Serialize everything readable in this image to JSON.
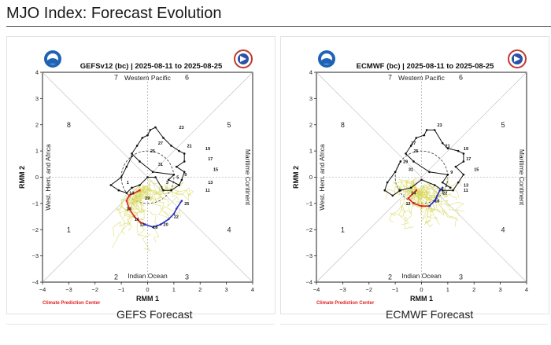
{
  "page": {
    "title": "MJO Index: Forecast Evolution"
  },
  "chart_data": [
    {
      "type": "scatter",
      "title": "GEFSv12 (bc) | 2025-08-11 to 2025-08-25",
      "caption": "GEFS Forecast",
      "xlabel": "RMM 1",
      "ylabel": "RMM 2",
      "xlim": [
        -4,
        4
      ],
      "ylim": [
        -4,
        4
      ],
      "xticks": [
        "−4",
        "−3",
        "−2",
        "−1",
        "0",
        "1",
        "2",
        "3",
        "4"
      ],
      "yticks": [
        "−4",
        "−3",
        "−2",
        "−1",
        "0",
        "1",
        "2",
        "3",
        "4"
      ],
      "region_labels": {
        "top": "Western Pacific",
        "bottom": "Indian Ocean",
        "left": "West. Hem. and Africa",
        "right": "Maritime Continent"
      },
      "phase_numbers": [
        "1",
        "2",
        "3",
        "4",
        "5",
        "6",
        "7",
        "8"
      ],
      "credit": "Climate Prediction Center",
      "colors": {
        "observed": "#111111",
        "ensemble_mean_week1": "#e02020",
        "ensemble_mean_week2": "#2030c0",
        "members": "#d8d860"
      },
      "series": [
        {
          "points": [
            [
              1.2,
              -0.3
            ],
            [
              0.8,
              -0.1
            ],
            [
              1.0,
              0.1
            ],
            [
              0.2,
              0.2
            ],
            [
              -0.3,
              0.6
            ],
            [
              -0.6,
              0.9
            ],
            [
              -0.4,
              1.2
            ],
            [
              -0.2,
              1.5
            ],
            [
              0.0,
              1.6
            ],
            [
              0.1,
              1.8
            ],
            [
              0.3,
              1.9
            ],
            [
              0.6,
              1.5
            ],
            [
              0.9,
              1.2
            ],
            [
              1.2,
              1.0
            ],
            [
              1.4,
              0.9
            ],
            [
              1.4,
              0.6
            ],
            [
              1.1,
              0.4
            ],
            [
              1.4,
              0.2
            ],
            [
              1.3,
              -0.1
            ],
            [
              1.2,
              -0.3
            ],
            [
              0.9,
              -0.5
            ],
            [
              0.6,
              -0.5
            ],
            [
              0.3,
              0.0
            ],
            [
              0.0,
              0.0
            ],
            [
              -0.3,
              -0.3
            ],
            [
              -0.6,
              -0.4
            ],
            [
              -0.8,
              -0.6
            ],
            [
              -1.1,
              -0.5
            ],
            [
              -1.4,
              -0.3
            ],
            [
              -1.0,
              0.0
            ],
            [
              -0.8,
              0.4
            ],
            [
              -0.6,
              0.8
            ]
          ],
          "labels": [
            {
              "t": "23",
              "p": [
                1.2,
                1.9
              ]
            },
            {
              "t": "21",
              "p": [
                1.5,
                1.2
              ]
            },
            {
              "t": "19",
              "p": [
                2.2,
                1.1
              ]
            },
            {
              "t": "17",
              "p": [
                2.3,
                0.7
              ]
            },
            {
              "t": "15",
              "p": [
                2.5,
                0.3
              ]
            },
            {
              "t": "13",
              "p": [
                2.3,
                -0.2
              ]
            },
            {
              "t": "11",
              "p": [
                2.2,
                -0.5
              ]
            },
            {
              "t": "27",
              "p": [
                0.4,
                1.3
              ]
            },
            {
              "t": "25",
              "p": [
                0.1,
                1.0
              ]
            },
            {
              "t": "31",
              "p": [
                0.4,
                0.5
              ]
            },
            {
              "t": "9",
              "p": [
                1.4,
                0.1
              ]
            },
            {
              "t": "5",
              "p": [
                1.1,
                0.0
              ]
            },
            {
              "t": "3",
              "p": [
                0.7,
                -0.2
              ]
            },
            {
              "t": "1",
              "p": [
                0.5,
                -0.4
              ]
            },
            {
              "t": "29",
              "p": [
                -0.1,
                -0.8
              ]
            },
            {
              "t": "1",
              "p": [
                -0.8,
                -0.2
              ]
            }
          ]
        },
        {
          "points": [
            [
              -0.3,
              -0.5
            ],
            [
              -0.7,
              -0.7
            ],
            [
              -0.8,
              -0.9
            ],
            [
              -0.7,
              -1.2
            ],
            [
              -0.5,
              -1.5
            ],
            [
              -0.3,
              -1.7
            ],
            [
              -0.1,
              -1.8
            ]
          ],
          "labels": [
            {
              "t": "14",
              "p": [
                -0.7,
                -0.6
              ]
            },
            {
              "t": "13",
              "p": [
                -0.8,
                -1.2
              ]
            },
            {
              "t": "16",
              "p": [
                -0.5,
                -1.6
              ]
            },
            {
              "t": "12",
              "p": [
                -0.3,
                -1.8
              ]
            }
          ]
        },
        {
          "points": [
            [
              -0.1,
              -1.8
            ],
            [
              0.2,
              -1.9
            ],
            [
              0.5,
              -1.8
            ],
            [
              0.8,
              -1.6
            ],
            [
              1.0,
              -1.4
            ],
            [
              1.1,
              -1.2
            ],
            [
              1.3,
              -0.9
            ]
          ],
          "labels": [
            {
              "t": "18",
              "p": [
                0.2,
                -1.9
              ]
            },
            {
              "t": "20",
              "p": [
                0.6,
                -1.8
              ]
            },
            {
              "t": "22",
              "p": [
                1.0,
                -1.5
              ]
            },
            {
              "t": "25",
              "p": [
                1.4,
                -1.0
              ]
            }
          ]
        }
      ],
      "spread": {
        "center": [
          0.3,
          -1.6
        ],
        "radius_x": 1.7,
        "radius_y": 1.3,
        "members": 22
      }
    },
    {
      "type": "scatter",
      "title": "ECMWF (bc) | 2025-08-11 to 2025-08-25",
      "caption": "ECMWF Forecast",
      "xlabel": "RMM 1",
      "ylabel": "RMM 2",
      "xlim": [
        -4,
        4
      ],
      "ylim": [
        -4,
        4
      ],
      "xticks": [
        "−4",
        "−3",
        "−2",
        "−1",
        "0",
        "1",
        "2",
        "3",
        "4"
      ],
      "yticks": [
        "−4",
        "−3",
        "−2",
        "−1",
        "0",
        "1",
        "2",
        "3",
        "4"
      ],
      "region_labels": {
        "top": "Western Pacific",
        "bottom": "Indian Ocean",
        "left": "West. Hem. and Africa",
        "right": "Maritime Continent"
      },
      "phase_numbers": [
        "1",
        "2",
        "3",
        "4",
        "5",
        "6",
        "7",
        "8"
      ],
      "credit": "Climate Prediction Center",
      "colors": {
        "observed": "#111111",
        "ensemble_mean_week1": "#e02020",
        "ensemble_mean_week2": "#2030c0",
        "members": "#d8d860"
      },
      "series": [
        {
          "points": [
            [
              1.1,
              -0.4
            ],
            [
              0.8,
              -0.2
            ],
            [
              1.0,
              0.1
            ],
            [
              0.3,
              0.2
            ],
            [
              -0.3,
              0.6
            ],
            [
              -0.6,
              0.9
            ],
            [
              -0.4,
              1.2
            ],
            [
              -0.2,
              1.5
            ],
            [
              0.1,
              1.6
            ],
            [
              0.2,
              1.8
            ],
            [
              0.5,
              1.8
            ],
            [
              0.8,
              1.3
            ],
            [
              1.0,
              1.1
            ],
            [
              1.4,
              1.0
            ],
            [
              1.6,
              0.9
            ],
            [
              1.6,
              0.6
            ],
            [
              1.3,
              0.4
            ],
            [
              1.6,
              0.1
            ],
            [
              1.4,
              -0.2
            ],
            [
              1.2,
              -0.5
            ],
            [
              0.8,
              -0.5
            ],
            [
              0.5,
              -0.3
            ],
            [
              0.0,
              -0.1
            ],
            [
              -0.4,
              -0.4
            ],
            [
              -0.8,
              -0.5
            ],
            [
              -1.1,
              -0.7
            ],
            [
              -1.4,
              -0.5
            ],
            [
              -1.3,
              -0.2
            ],
            [
              -1.0,
              0.2
            ],
            [
              -0.8,
              0.6
            ]
          ],
          "labels": [
            {
              "t": "23",
              "p": [
                0.6,
                2.0
              ]
            },
            {
              "t": "21",
              "p": [
                0.9,
                1.2
              ]
            },
            {
              "t": "19",
              "p": [
                1.6,
                1.1
              ]
            },
            {
              "t": "17",
              "p": [
                1.7,
                0.7
              ]
            },
            {
              "t": "15",
              "p": [
                2.0,
                0.3
              ]
            },
            {
              "t": "13",
              "p": [
                1.6,
                -0.3
              ]
            },
            {
              "t": "11",
              "p": [
                1.6,
                -0.5
              ]
            },
            {
              "t": "27",
              "p": [
                -0.4,
                1.3
              ]
            },
            {
              "t": "25",
              "p": [
                -0.3,
                1.0
              ]
            },
            {
              "t": "29",
              "p": [
                -0.7,
                0.6
              ]
            },
            {
              "t": "31",
              "p": [
                -0.5,
                0.3
              ]
            },
            {
              "t": "9",
              "p": [
                1.1,
                0.2
              ]
            },
            {
              "t": "1",
              "p": [
                0.9,
                -0.3
              ]
            },
            {
              "t": "1",
              "p": [
                -0.9,
                -0.5
              ]
            }
          ]
        },
        {
          "points": [
            [
              -0.2,
              -0.5
            ],
            [
              -0.5,
              -0.8
            ],
            [
              -0.3,
              -1.0
            ],
            [
              0.0,
              -1.1
            ],
            [
              0.3,
              -1.1
            ]
          ],
          "labels": [
            {
              "t": "12",
              "p": [
                -0.6,
                -1.0
              ]
            },
            {
              "t": "14",
              "p": [
                -0.4,
                -0.6
              ]
            }
          ]
        },
        {
          "points": [
            [
              0.3,
              -1.1
            ],
            [
              0.5,
              -0.9
            ],
            [
              0.6,
              -0.7
            ],
            [
              0.7,
              -0.5
            ],
            [
              0.8,
              -0.4
            ]
          ],
          "labels": [
            {
              "t": "18",
              "p": [
                0.5,
                -0.9
              ]
            },
            {
              "t": "22",
              "p": [
                0.8,
                -0.6
              ]
            }
          ]
        }
      ],
      "spread": {
        "center": [
          0.2,
          -1.0
        ],
        "radius_x": 1.5,
        "radius_y": 1.0,
        "members": 26
      }
    }
  ]
}
